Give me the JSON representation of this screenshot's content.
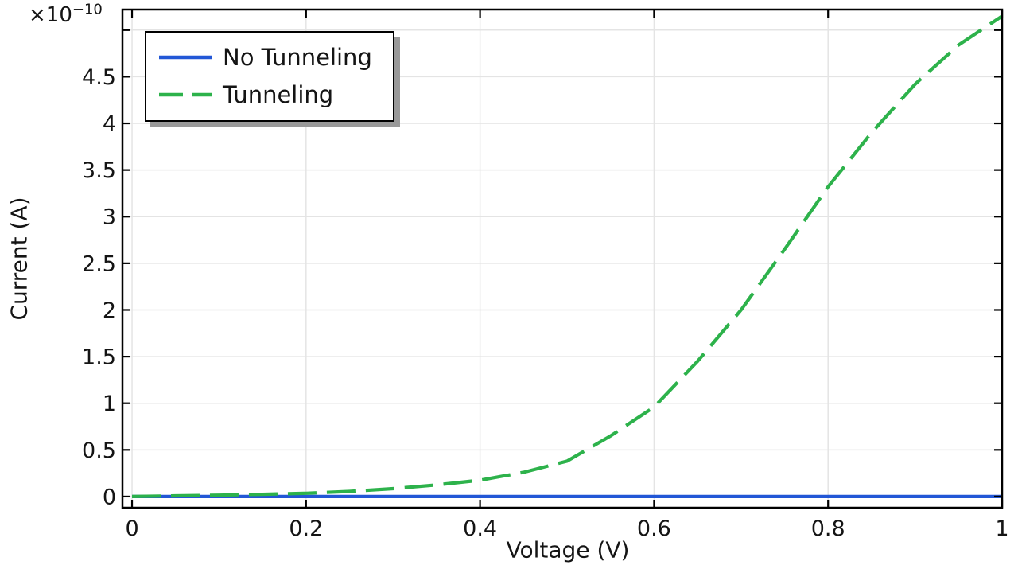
{
  "chart_data": {
    "type": "line",
    "title": "",
    "xlabel": "Voltage (V)",
    "ylabel": "Current (A)",
    "y_multiplier": {
      "base": "×10",
      "exponent": "−10"
    },
    "grid": true,
    "legend_position": "top-left",
    "background": "#ffffff",
    "grid_color": "#e4e4e4",
    "frame_color": "#000000",
    "xlim": [
      -0.011,
      1.0
    ],
    "ylim": [
      -0.12,
      5.22
    ],
    "xticks": {
      "values": [
        0,
        0.2,
        0.4,
        0.6,
        0.8,
        1.0
      ],
      "labels": [
        "0",
        "0.2",
        "0.4",
        "0.6",
        "0.8",
        "1"
      ]
    },
    "yticks": {
      "values": [
        0,
        0.5,
        1,
        1.5,
        2,
        2.5,
        3,
        3.5,
        4,
        4.5,
        5
      ],
      "labels": [
        "0",
        "0.5",
        "1",
        "1.5",
        "2",
        "2.5",
        "3",
        "3.5",
        "4",
        "4.5",
        ""
      ]
    },
    "x": [
      0,
      0.05,
      0.1,
      0.15,
      0.2,
      0.25,
      0.3,
      0.35,
      0.4,
      0.45,
      0.5,
      0.55,
      0.6,
      0.65,
      0.7,
      0.75,
      0.8,
      0.85,
      0.9,
      0.95,
      1.0
    ],
    "x_unit": "V",
    "y_unit": "A",
    "y_scale": 1e-10,
    "series": [
      {
        "name": "No Tunneling",
        "color": "#2257d6",
        "style": "solid",
        "values": [
          0,
          0,
          0,
          0,
          0,
          0,
          0,
          0,
          0,
          0,
          0,
          0,
          0,
          0,
          0,
          0,
          0,
          0,
          0,
          0,
          0
        ]
      },
      {
        "name": "Tunneling",
        "color": "#2db24b",
        "style": "dashed",
        "values": [
          0,
          0.008,
          0.015,
          0.024,
          0.035,
          0.055,
          0.085,
          0.125,
          0.175,
          0.26,
          0.38,
          0.65,
          0.96,
          1.45,
          2.0,
          2.65,
          3.32,
          3.9,
          4.42,
          4.84,
          5.15
        ]
      }
    ]
  }
}
